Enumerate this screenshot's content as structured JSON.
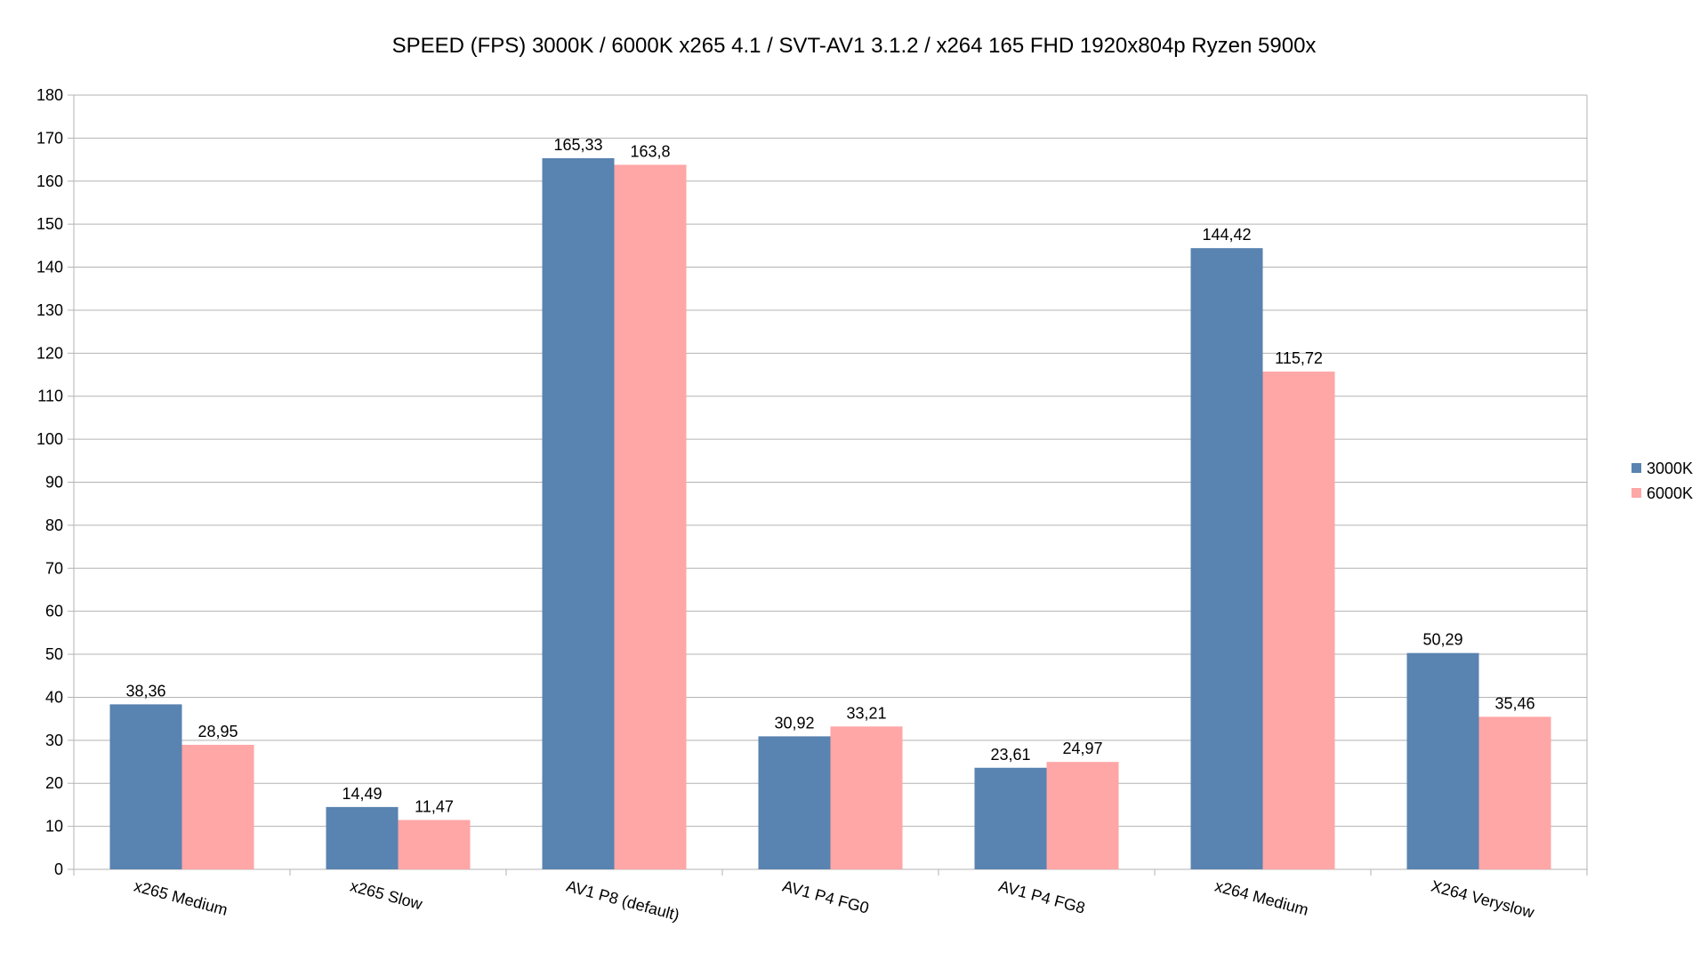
{
  "chart_data": {
    "type": "bar",
    "title": "SPEED (FPS) 3000K / 6000K  x265 4.1 / SVT-AV1 3.1.2 / x264 165 FHD 1920x804p Ryzen 5900x",
    "categories": [
      "x265 Medium",
      "x265 Slow",
      "AV1 P8 (default)",
      "AV1 P4 FG0",
      "AV1 P4 FG8",
      "x264 Medium",
      "X264 Veryslow"
    ],
    "series": [
      {
        "name": "3000K",
        "color": "#5983b0",
        "values": [
          38.36,
          14.49,
          165.33,
          30.92,
          23.61,
          144.42,
          50.29
        ],
        "labels": [
          "38,36",
          "14,49",
          "165,33",
          "30,92",
          "23,61",
          "144,42",
          "50,29"
        ]
      },
      {
        "name": "6000K",
        "color": "#ffa6a6",
        "values": [
          28.95,
          11.47,
          163.8,
          33.21,
          24.97,
          115.72,
          35.46
        ],
        "labels": [
          "28,95",
          "11,47",
          "163,8",
          "33,21",
          "24,97",
          "115,72",
          "35,46"
        ]
      }
    ],
    "ylim": [
      0,
      180
    ],
    "yticks": [
      0,
      10,
      20,
      30,
      40,
      50,
      60,
      70,
      80,
      90,
      100,
      110,
      120,
      130,
      140,
      150,
      160,
      170,
      180
    ],
    "grid": true,
    "legend_position": "right"
  }
}
